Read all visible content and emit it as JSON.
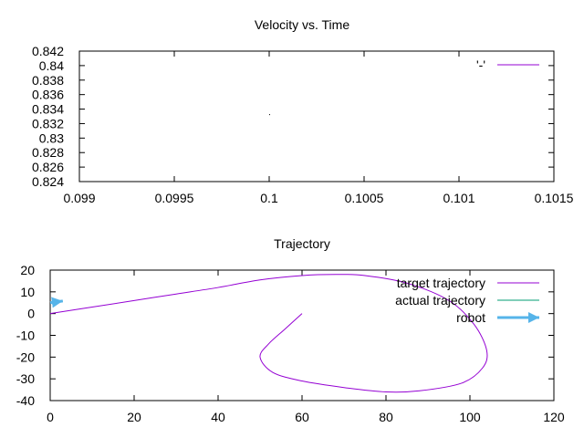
{
  "chart_data": [
    {
      "type": "line",
      "title": "Velocity vs. Time",
      "xlabel": "",
      "ylabel": "",
      "xlim": [
        0.099,
        0.1015
      ],
      "ylim": [
        0.824,
        0.842
      ],
      "xticks": [
        0.099,
        0.0995,
        0.1,
        0.1005,
        0.101,
        0.1015
      ],
      "xtick_labels": [
        "0.099",
        "0.0995",
        "0.1",
        "0.1005",
        "0.101",
        "0.1015"
      ],
      "yticks": [
        0.824,
        0.826,
        0.828,
        0.83,
        0.832,
        0.834,
        0.836,
        0.838,
        0.84,
        0.842
      ],
      "ytick_labels": [
        "0.824",
        "0.826",
        "0.828",
        "0.83",
        "0.832",
        "0.834",
        "0.836",
        "0.838",
        "0.84",
        "0.842"
      ],
      "legend_placement": "top-right",
      "series": [
        {
          "name": "'-'",
          "color": "#9400d3",
          "points": [
            {
              "x": 0.1,
              "y": 0.8333
            }
          ]
        }
      ]
    },
    {
      "type": "line",
      "title": "Trajectory",
      "xlabel": "",
      "ylabel": "",
      "xlim": [
        0,
        120
      ],
      "ylim": [
        -40,
        20
      ],
      "xticks": [
        0,
        20,
        40,
        60,
        80,
        100,
        120
      ],
      "xtick_labels": [
        "0",
        "20",
        "40",
        "60",
        "80",
        "100",
        "120"
      ],
      "yticks": [
        -40,
        -30,
        -20,
        -10,
        0,
        10,
        20
      ],
      "ytick_labels": [
        "-40",
        "-30",
        "-20",
        "-10",
        "0",
        "10",
        "20"
      ],
      "legend_placement": "top-right",
      "series": [
        {
          "name": "target trajectory",
          "color": "#9400d3",
          "points": [
            {
              "x": 0,
              "y": 0
            },
            {
              "x": 10,
              "y": 3
            },
            {
              "x": 20,
              "y": 6
            },
            {
              "x": 30,
              "y": 9
            },
            {
              "x": 40,
              "y": 12
            },
            {
              "x": 50,
              "y": 15.5
            },
            {
              "x": 60,
              "y": 17.5
            },
            {
              "x": 68,
              "y": 18
            },
            {
              "x": 75,
              "y": 17.5
            },
            {
              "x": 85,
              "y": 14
            },
            {
              "x": 95,
              "y": 6
            },
            {
              "x": 101,
              "y": -5
            },
            {
              "x": 104,
              "y": -17
            },
            {
              "x": 103,
              "y": -25
            },
            {
              "x": 98,
              "y": -32
            },
            {
              "x": 88,
              "y": -35.5
            },
            {
              "x": 80,
              "y": -36
            },
            {
              "x": 70,
              "y": -34
            },
            {
              "x": 60,
              "y": -31
            },
            {
              "x": 53,
              "y": -27
            },
            {
              "x": 50,
              "y": -20
            },
            {
              "x": 52,
              "y": -14
            },
            {
              "x": 56,
              "y": -7
            },
            {
              "x": 60,
              "y": 0
            }
          ]
        },
        {
          "name": "actual trajectory",
          "color": "#009e73",
          "points": [
            {
              "x": 0,
              "y": 5
            },
            {
              "x": 3,
              "y": 5.7
            }
          ]
        },
        {
          "name": "robot",
          "color": "#56b4e9",
          "arrows": [
            {
              "x": 0,
              "y": 5,
              "dx": 3,
              "dy": 0.8
            }
          ]
        }
      ]
    }
  ]
}
